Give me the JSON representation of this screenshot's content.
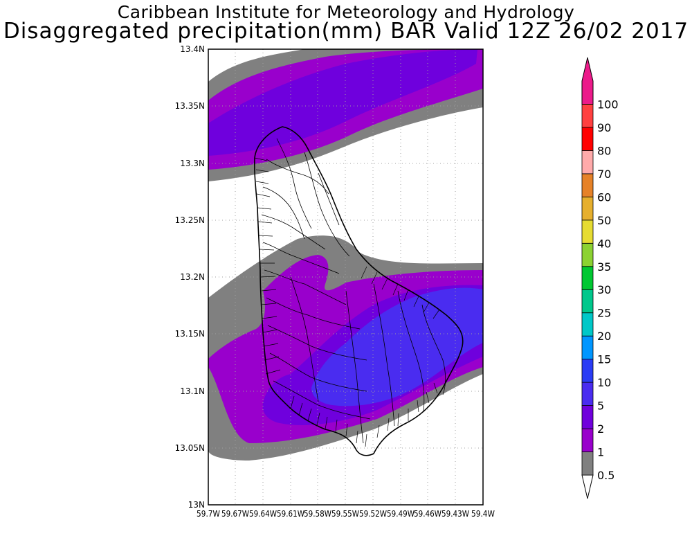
{
  "title_line1": "Caribbean Institute for Meteorology and Hydrology",
  "title_line2": "Disaggregated precipitation(mm) BAR Valid 12Z 26/02 2017",
  "map": {
    "lon_range": [
      -59.7,
      -59.4
    ],
    "lat_range": [
      13.0,
      13.4
    ],
    "lon_ticks": [
      "59.7W",
      "59.67W",
      "59.64W",
      "59.61W",
      "59.58W",
      "59.55W",
      "59.52W",
      "59.49W",
      "59.46W",
      "59.43W",
      "59.4W"
    ],
    "lat_ticks": [
      "13N",
      "13.05N",
      "13.1N",
      "13.15N",
      "13.2N",
      "13.25N",
      "13.3N",
      "13.35N",
      "13.4N"
    ],
    "colors": {
      "gray": "#808080",
      "purple_1": "#9900cc",
      "purple_2": "#6f00dd",
      "blue_5": "#4a2cf0"
    }
  },
  "legend": {
    "labels": [
      "0.5",
      "1",
      "2",
      "5",
      "10",
      "15",
      "20",
      "25",
      "30",
      "35",
      "40",
      "50",
      "60",
      "70",
      "80",
      "90",
      "100"
    ],
    "colors": [
      "#808080",
      "#9900cc",
      "#7000dc",
      "#4a2cf0",
      "#2a3cf5",
      "#0096ff",
      "#00c8c8",
      "#00c88c",
      "#00c832",
      "#8cd232",
      "#e6dc32",
      "#e6af2d",
      "#e68228",
      "#ffaaaa",
      "#ff0000",
      "#ff4040",
      "#ec1a8a"
    ],
    "top_arrow_color": "#ec1a8a"
  }
}
